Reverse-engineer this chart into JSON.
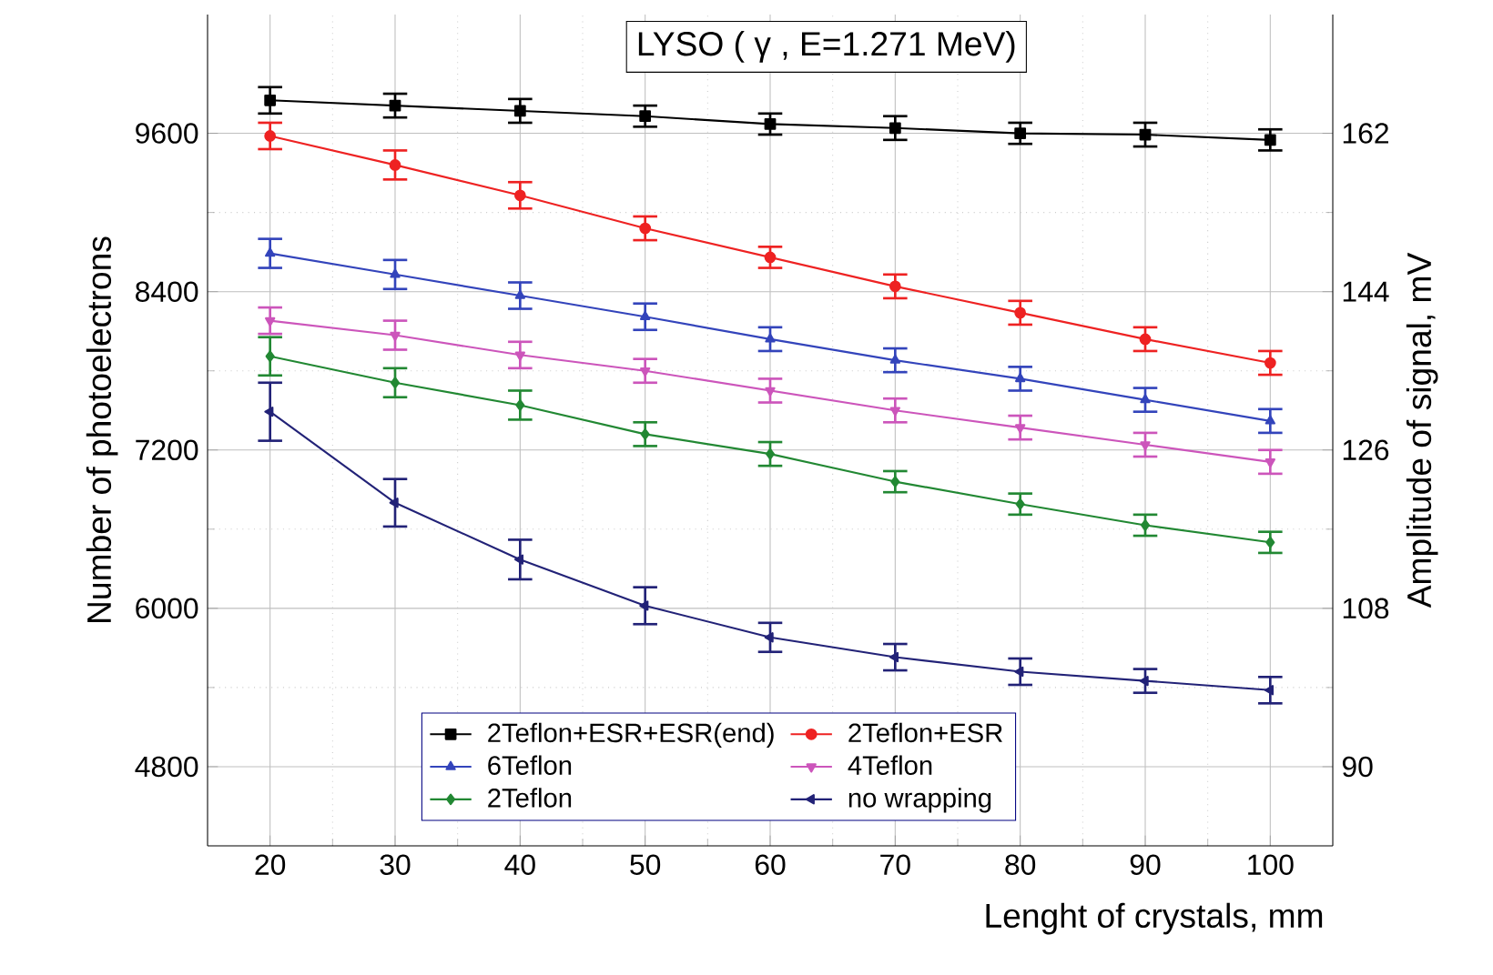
{
  "chart_data": {
    "type": "line",
    "title": "LYSO ( γ , E=1.271 MeV)",
    "xlabel": "Lenght of crystals, mm",
    "ylabel": "Number of photoelectrons",
    "y2label": "Amplitude of signal, mV",
    "x": [
      20,
      30,
      40,
      50,
      60,
      70,
      80,
      90,
      100
    ],
    "series": [
      {
        "name": "2Teflon+ESR+ESR(end)",
        "color": "#000000",
        "marker": "square",
        "values": [
          9850,
          9810,
          9770,
          9730,
          9670,
          9640,
          9600,
          9590,
          9550
        ],
        "errors": [
          100,
          90,
          90,
          80,
          80,
          90,
          80,
          90,
          80
        ]
      },
      {
        "name": "2Teflon+ESR",
        "color": "#ee2222",
        "marker": "circle",
        "values": [
          9580,
          9360,
          9130,
          8880,
          8660,
          8440,
          8240,
          8040,
          7860
        ],
        "errors": [
          100,
          110,
          100,
          90,
          80,
          90,
          90,
          90,
          90
        ]
      },
      {
        "name": "6Teflon",
        "color": "#3344bb",
        "marker": "triangle",
        "values": [
          8690,
          8530,
          8370,
          8210,
          8040,
          7880,
          7740,
          7580,
          7420
        ],
        "errors": [
          110,
          110,
          100,
          100,
          90,
          90,
          90,
          90,
          90
        ]
      },
      {
        "name": "4Teflon",
        "color": "#cc55bb",
        "marker": "triangle down",
        "values": [
          8180,
          8070,
          7920,
          7800,
          7650,
          7500,
          7370,
          7240,
          7110
        ],
        "errors": [
          100,
          110,
          100,
          90,
          90,
          90,
          90,
          90,
          90
        ]
      },
      {
        "name": "2Teflon",
        "color": "#228833",
        "marker": "diamond",
        "values": [
          7910,
          7710,
          7540,
          7320,
          7170,
          6960,
          6790,
          6630,
          6500
        ],
        "errors": [
          145,
          110,
          110,
          90,
          90,
          80,
          80,
          80,
          80
        ]
      },
      {
        "name": "no wrapping",
        "color": "#222277",
        "marker": "triangle left",
        "values": [
          7490,
          6800,
          6370,
          6020,
          5780,
          5630,
          5520,
          5450,
          5380
        ],
        "errors": [
          220,
          180,
          150,
          140,
          110,
          100,
          100,
          90,
          100
        ]
      }
    ],
    "xlim": [
      15,
      105
    ],
    "xticks": [
      20,
      30,
      40,
      50,
      60,
      70,
      80,
      90,
      100
    ],
    "ylim": [
      4200,
      10500
    ],
    "yticks": [
      4800,
      6000,
      7200,
      8400,
      9600
    ],
    "y2lim": [
      81,
      175.5
    ],
    "y2ticks": [
      90,
      108,
      126,
      144,
      162
    ],
    "grid": true,
    "legend": "bottom",
    "line_style": "solid"
  }
}
